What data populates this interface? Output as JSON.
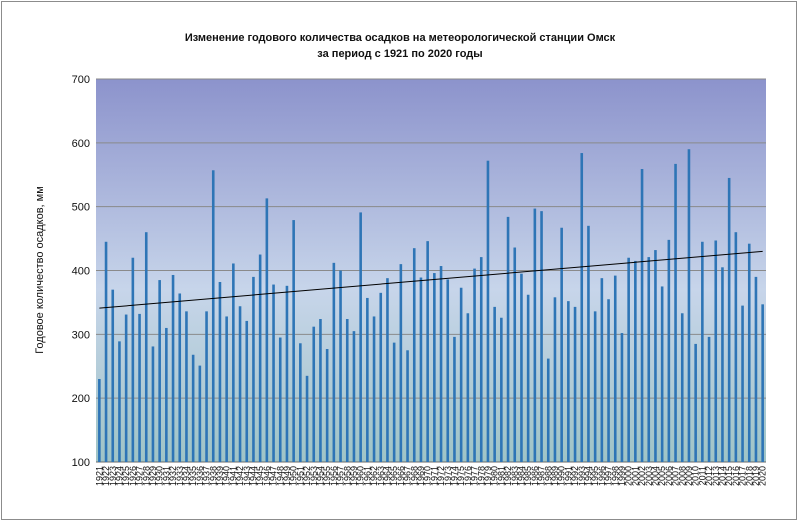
{
  "chart_data": {
    "type": "bar",
    "title_line1": "Изменение годового количества осадков на метеорологической станции Омск",
    "title_line2": "за период с 1921  по 2020 годы",
    "ylabel": "Годовое количество осадков, мм",
    "xlabel": "",
    "ylim": [
      100,
      700
    ],
    "yticks": [
      100,
      200,
      300,
      400,
      500,
      600,
      700
    ],
    "x_start": 1921,
    "x_end": 2020,
    "values": [
      230,
      445,
      370,
      289,
      331,
      420,
      332,
      460,
      281,
      385,
      310,
      393,
      364,
      336,
      268,
      251,
      336,
      557,
      382,
      328,
      411,
      344,
      321,
      390,
      425,
      513,
      378,
      295,
      376,
      479,
      286,
      235,
      312,
      324,
      277,
      412,
      400,
      324,
      305,
      491,
      357,
      328,
      365,
      388,
      287,
      410,
      275,
      435,
      389,
      446,
      396,
      407,
      386,
      296,
      373,
      333,
      403,
      421,
      572,
      343,
      326,
      484,
      436,
      395,
      362,
      497,
      493,
      262,
      358,
      467,
      352,
      343,
      584,
      470,
      336,
      388,
      355,
      392,
      302,
      420,
      415,
      559,
      421,
      432,
      375,
      448,
      567,
      333,
      590,
      285,
      445,
      296,
      447,
      405,
      545,
      460,
      345,
      442,
      390,
      347
    ],
    "trend": [
      341,
      430
    ],
    "grid": true,
    "legend": "none",
    "colors": {
      "bar": "#2e75b6",
      "trend": "#000000",
      "grid": "#8a8a8a",
      "bg_top": "#8c93cc",
      "bg_mid": "#c7d5ea",
      "bg_bottom": "#9fc4c6"
    }
  }
}
